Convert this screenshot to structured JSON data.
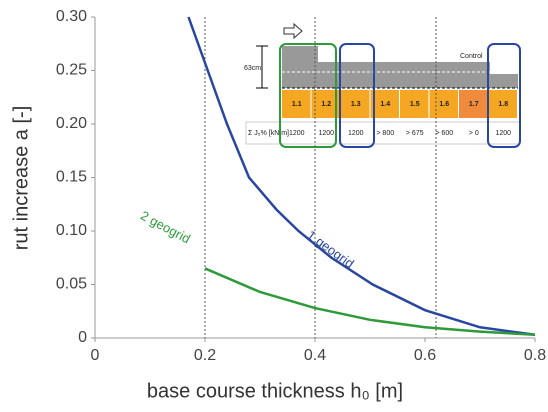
{
  "chart_data": {
    "type": "line",
    "xlabel": "base course thickness h₀ [m]",
    "ylabel": "rut increase a [-]",
    "xlim": [
      0,
      0.8
    ],
    "ylim": [
      0,
      0.3
    ],
    "xticks": [
      0,
      0.2,
      0.4,
      0.6,
      0.8
    ],
    "yticks": [
      0,
      0.05,
      {
        "value": 0.1,
        "label": "0.10"
      },
      0.15,
      {
        "value": 0.2,
        "label": "0.20"
      },
      0.25,
      {
        "value": 0.3,
        "label": "0.30"
      }
    ],
    "vlines": [
      0.2,
      0.4,
      0.62
    ],
    "series": [
      {
        "name": "1 geogrid",
        "color": "#2a47a0",
        "x": [
          0.17,
          0.205,
          0.24,
          0.28,
          0.33,
          0.37,
          0.43,
          0.505,
          0.6,
          0.7,
          0.8
        ],
        "values": [
          0.3,
          0.25,
          0.2,
          0.15,
          0.12,
          0.1,
          0.075,
          0.05,
          0.026,
          0.01,
          0.003
        ]
      },
      {
        "name": "2 geogrid",
        "color": "#2e9a3a",
        "x": [
          0.2,
          0.3,
          0.4,
          0.5,
          0.6,
          0.7,
          0.8
        ],
        "values": [
          0.065,
          0.043,
          0.028,
          0.017,
          0.01,
          0.006,
          0.003
        ]
      }
    ],
    "inset": {
      "depth_label": "63cm",
      "control_label": "Control",
      "sections": [
        "1.1",
        "1.2",
        "1.3",
        "1.4",
        "1.5",
        "1.6",
        "1.7",
        "1.8"
      ],
      "stiffness_label": "Σ J₅% [kN/m]",
      "stiffness": [
        "1200",
        "1200",
        "1200",
        "> 800",
        "> 675",
        "> 600",
        "> 0",
        "1200"
      ]
    }
  }
}
